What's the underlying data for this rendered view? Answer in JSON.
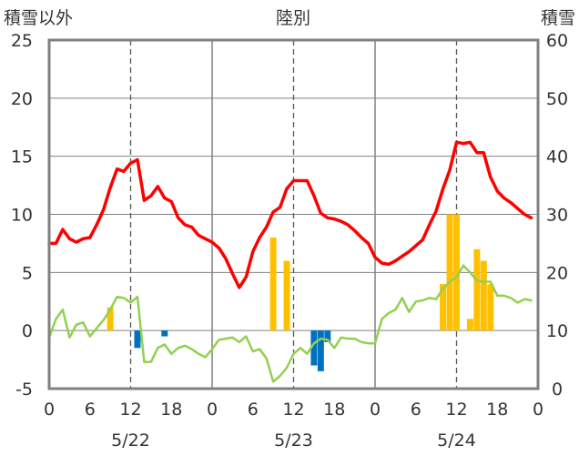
{
  "chart_data": {
    "type": "line",
    "title": "陸別",
    "y_left_label": "積雪以外",
    "y_right_label": "積雪",
    "y_left_range": [
      -5,
      25
    ],
    "y_left_ticks": [
      "-5",
      "0",
      "5",
      "10",
      "15",
      "20",
      "25"
    ],
    "y_right_range": [
      0,
      60
    ],
    "y_right_ticks": [
      "0",
      "10",
      "20",
      "30",
      "40",
      "50",
      "60"
    ],
    "x_range_hours": [
      0,
      72
    ],
    "x_tick_labels": [
      "0",
      "6",
      "12",
      "18",
      "0",
      "6",
      "12",
      "18",
      "0",
      "6",
      "12",
      "18",
      "0"
    ],
    "day_labels": [
      "5/22",
      "5/23",
      "5/24"
    ],
    "grid": true,
    "colors": {
      "temp_max_line": "#ff0000",
      "temp_line": "#92d050",
      "precip_bar": "#ffc000",
      "depth_change_bar": "#0070c0",
      "axis": "#808080",
      "grid": "#808080"
    },
    "series": [
      {
        "color_key": "temp_max_line",
        "kind": "line",
        "axis": "left",
        "x": [
          0,
          1,
          2,
          3,
          4,
          5,
          6,
          7,
          8,
          9,
          10,
          11,
          12,
          13,
          14,
          15,
          16,
          17,
          18,
          19,
          20,
          21,
          22,
          23,
          24,
          25,
          26,
          27,
          28,
          29,
          30,
          31,
          32,
          33,
          34,
          35,
          36,
          37,
          38,
          39,
          40,
          41,
          42,
          43,
          44,
          45,
          46,
          47,
          48,
          49,
          50,
          51,
          52,
          53,
          54,
          55,
          56,
          57,
          58,
          59,
          60,
          61,
          62,
          63,
          64,
          65,
          66,
          67,
          68,
          69,
          70,
          71
        ],
        "y": [
          7.5,
          7.5,
          8.7,
          7.9,
          7.6,
          7.9,
          8.0,
          9.1,
          10.4,
          12.3,
          13.9,
          13.7,
          14.4,
          14.7,
          11.2,
          11.6,
          12.4,
          11.4,
          11.1,
          9.7,
          9.1,
          8.9,
          8.2,
          7.9,
          7.6,
          7.1,
          6.2,
          4.9,
          3.7,
          4.6,
          6.8,
          8.0,
          8.9,
          10.2,
          10.6,
          12.2,
          12.9,
          12.9,
          12.9,
          11.6,
          10.1,
          9.7,
          9.6,
          9.4,
          9.1,
          8.6,
          8.0,
          7.5,
          6.3,
          5.8,
          5.7,
          6.0,
          6.4,
          6.8,
          7.3,
          7.8,
          9.1,
          10.3,
          12.2,
          13.8,
          16.2,
          16.1,
          16.2,
          15.3,
          15.3,
          13.2,
          12.0,
          11.4,
          11.0,
          10.5,
          10.0,
          9.7
        ]
      },
      {
        "color_key": "temp_line",
        "kind": "line",
        "axis": "left",
        "x": [
          0,
          1,
          2,
          3,
          4,
          5,
          6,
          7,
          8,
          9,
          10,
          11,
          12,
          13,
          14,
          15,
          16,
          17,
          18,
          19,
          20,
          21,
          22,
          23,
          24,
          25,
          26,
          27,
          28,
          29,
          30,
          31,
          32,
          33,
          34,
          35,
          36,
          37,
          38,
          39,
          40,
          41,
          42,
          43,
          44,
          45,
          46,
          47,
          48,
          49,
          50,
          51,
          52,
          53,
          54,
          55,
          56,
          57,
          58,
          59,
          60,
          61,
          62,
          63,
          64,
          65,
          66,
          67,
          68,
          69,
          70,
          71
        ],
        "y": [
          -0.6,
          1.0,
          1.8,
          -0.6,
          0.5,
          0.7,
          -0.5,
          0.2,
          0.9,
          1.8,
          2.9,
          2.8,
          2.4,
          2.9,
          -2.7,
          -2.7,
          -1.5,
          -1.2,
          -2.0,
          -1.5,
          -1.3,
          -1.6,
          -2.0,
          -2.3,
          -1.6,
          -0.8,
          -0.7,
          -0.6,
          -1.0,
          -0.5,
          -1.8,
          -1.6,
          -2.4,
          -4.4,
          -3.9,
          -3.2,
          -2.0,
          -1.5,
          -2.0,
          -1.1,
          -0.7,
          -0.8,
          -1.5,
          -0.6,
          -0.7,
          -0.7,
          -1.0,
          -1.1,
          -1.1,
          1.0,
          1.5,
          1.8,
          2.8,
          1.6,
          2.5,
          2.6,
          2.8,
          2.7,
          3.6,
          4.2,
          4.6,
          5.6,
          5.0,
          4.3,
          4.2,
          4.2,
          3.0,
          3.0,
          2.8,
          2.4,
          2.7,
          2.6
        ]
      },
      {
        "color_key": "precip_bar",
        "kind": "bar",
        "axis": "left",
        "x": [
          9,
          33,
          35,
          58,
          59,
          60,
          61,
          62,
          63,
          64,
          65
        ],
        "y": [
          2,
          8,
          6,
          4,
          10,
          10,
          0,
          1,
          7,
          6,
          4
        ]
      },
      {
        "color_key": "depth_change_bar",
        "kind": "bar",
        "axis": "left",
        "x": [
          13,
          17,
          39,
          40,
          41
        ],
        "y": [
          -1.5,
          -0.5,
          -3,
          -3.5,
          -1
        ]
      }
    ]
  }
}
